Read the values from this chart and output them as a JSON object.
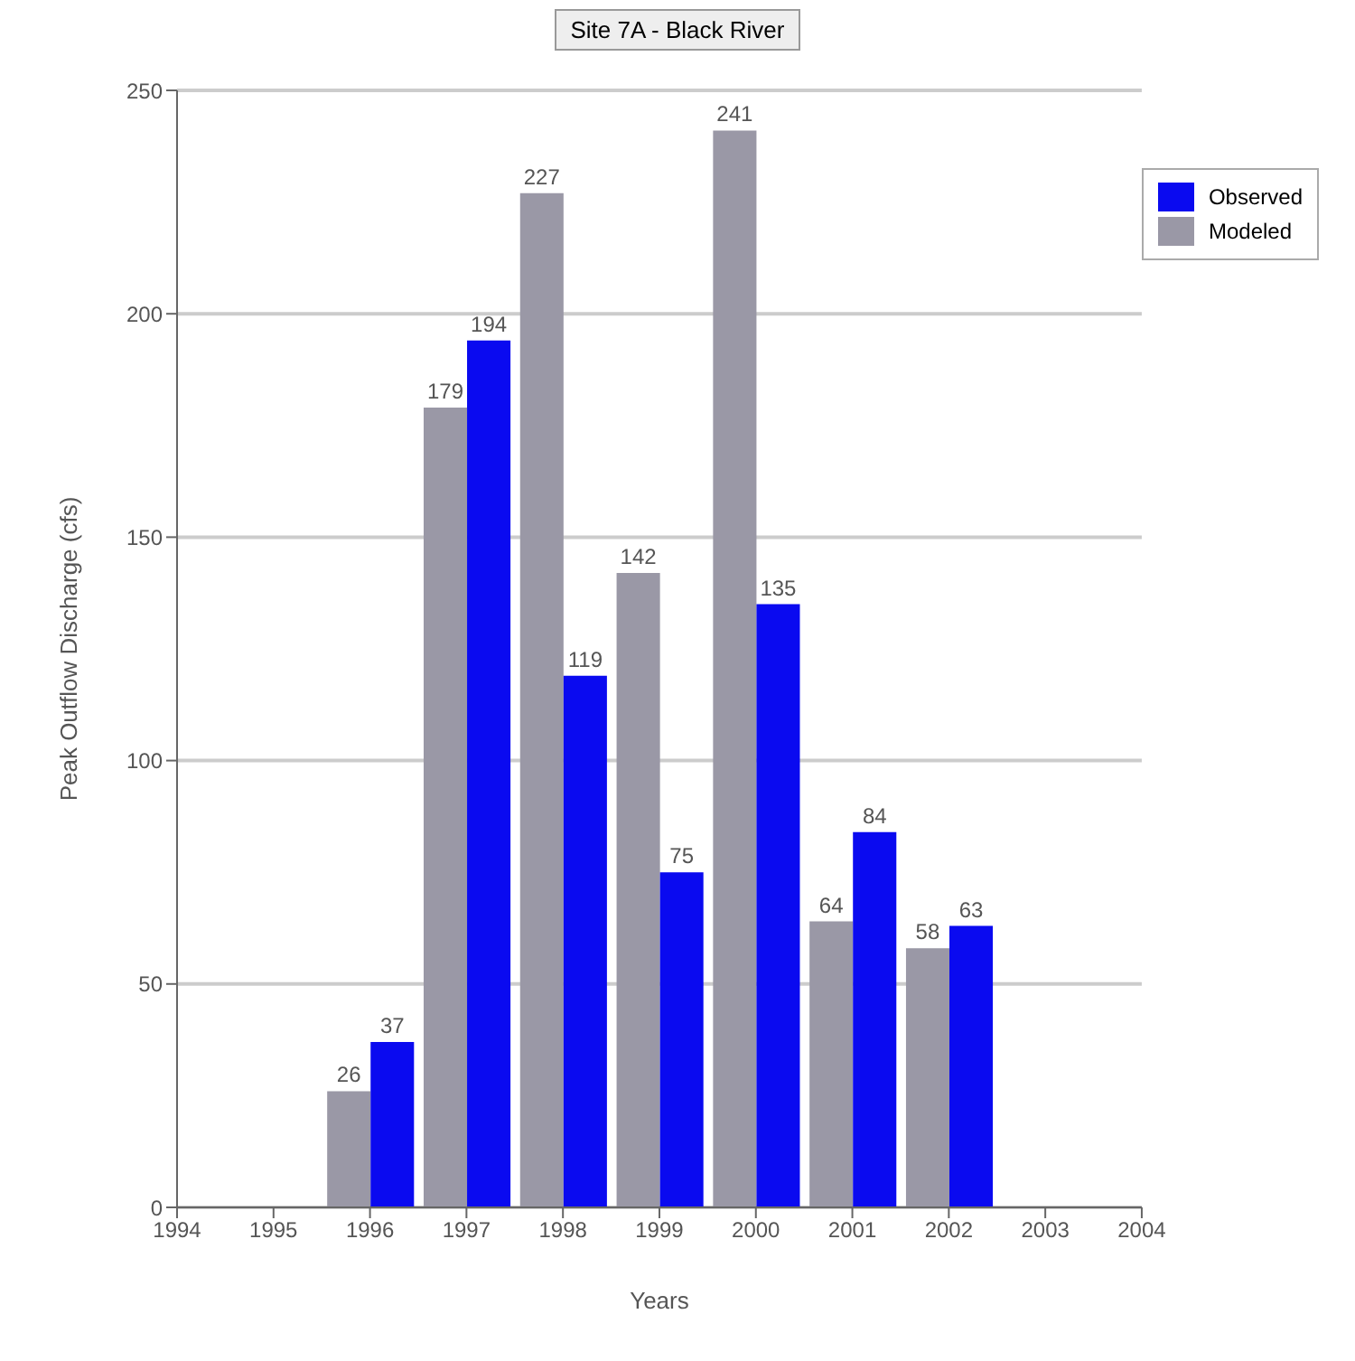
{
  "chart_data": {
    "type": "bar",
    "title": "Site 7A - Black River",
    "xlabel": "Years",
    "ylabel": "Peak Outflow Discharge (cfs)",
    "x": [
      1996,
      1997,
      1998,
      1999,
      2000,
      2001,
      2002
    ],
    "series": [
      {
        "name": "Observed",
        "color": "#0a0af0",
        "values": [
          37,
          194,
          119,
          75,
          135,
          84,
          63
        ]
      },
      {
        "name": "Modeled",
        "color": "#9a98a6",
        "values": [
          26,
          179,
          227,
          142,
          241,
          64,
          58
        ]
      }
    ],
    "xlim": [
      1994,
      2004
    ],
    "xticks": [
      1994,
      1995,
      1996,
      1997,
      1998,
      1999,
      2000,
      2001,
      2002,
      2003,
      2004
    ],
    "ylim": [
      0,
      250
    ],
    "yticks": [
      0,
      50,
      100,
      150,
      200,
      250
    ],
    "grid": "y",
    "legend": "top right",
    "data_labels": true
  }
}
